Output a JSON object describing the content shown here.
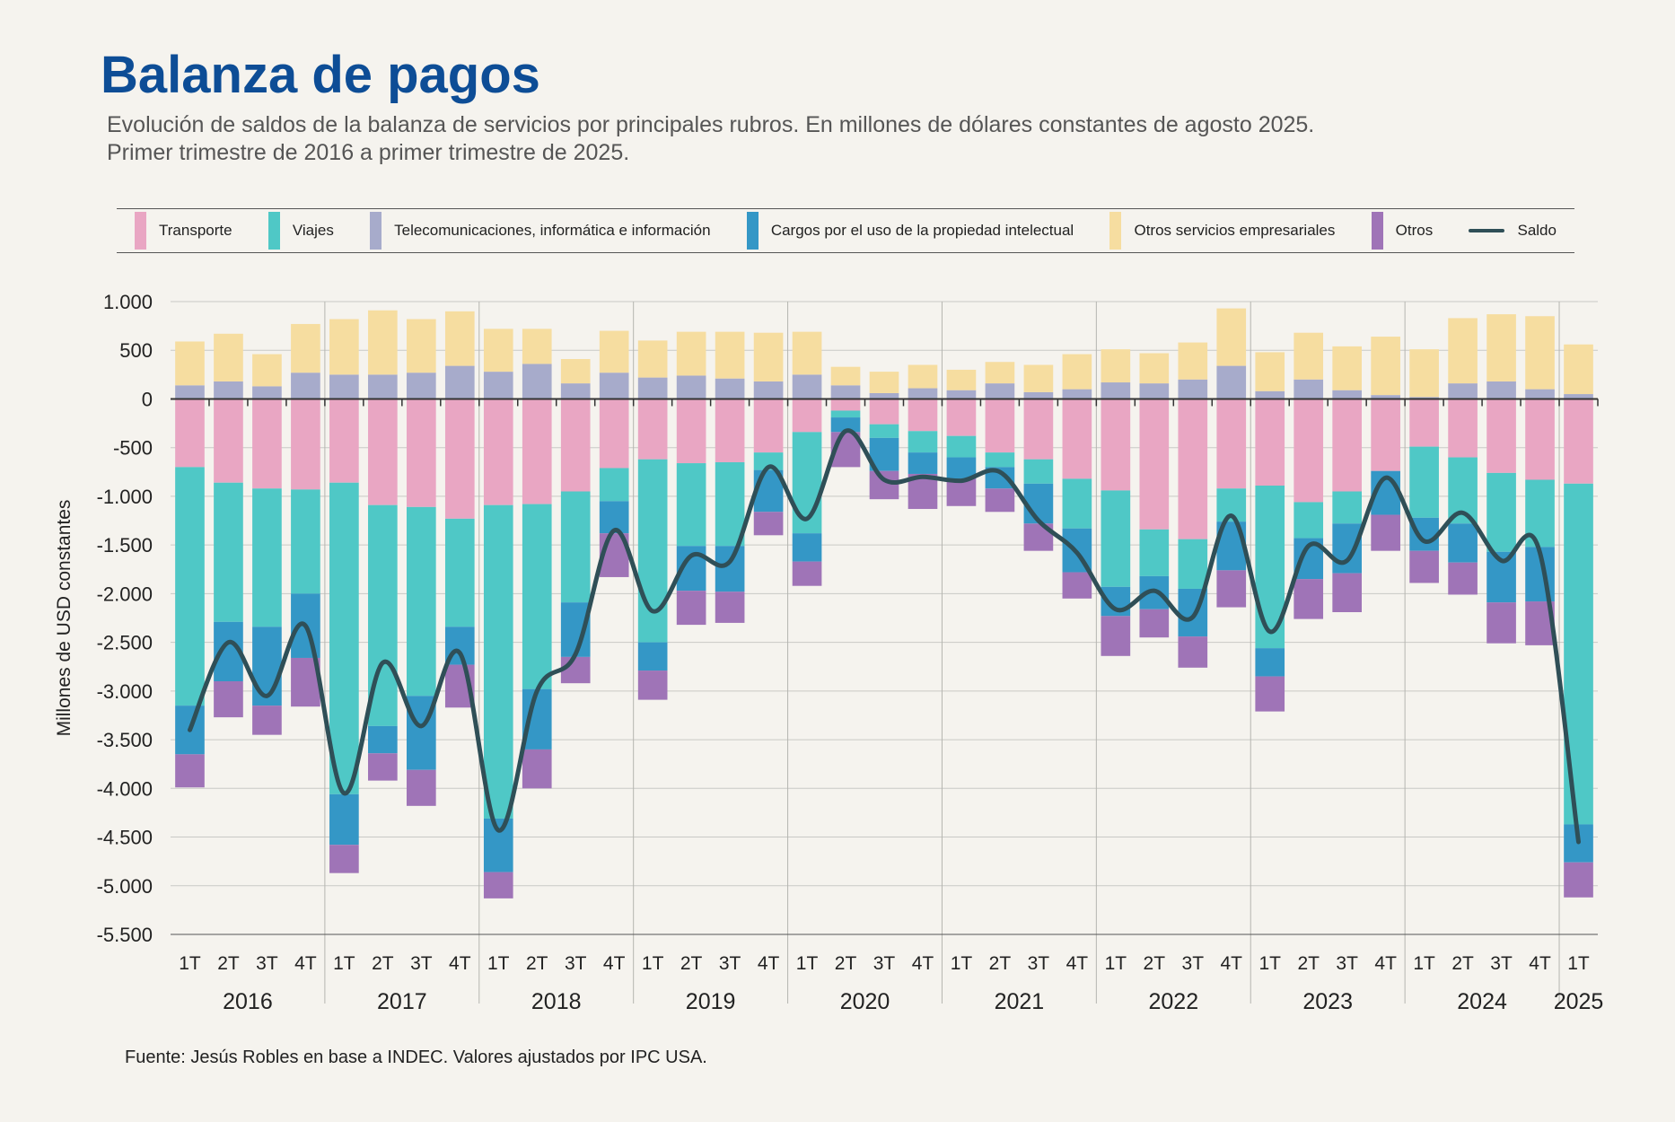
{
  "header": {
    "title": "Balanza de pagos",
    "subtitle_line1": "Evolución de saldos de la balanza de servicios por principales rubros. En millones de dólares constantes de agosto 2025.",
    "subtitle_line2": "Primer trimestre de 2016 a primer trimestre de 2025."
  },
  "source": "Fuente: Jesús Robles en base a INDEC. Valores ajustados por IPC USA.",
  "chart_data": {
    "type": "bar",
    "stacked": true,
    "ylabel": "Millones de USD constantes",
    "ylim": [
      -5500,
      1000
    ],
    "yticks": [
      1000,
      500,
      0,
      -500,
      -1000,
      -1500,
      -2000,
      -2500,
      -3000,
      -3500,
      -4000,
      -4500,
      -5000,
      -5500
    ],
    "ytick_labels": [
      "1.000",
      "500",
      "0",
      "-500",
      "-1.000",
      "-1.500",
      "-2.000",
      "-2.500",
      "-3.000",
      "-3.500",
      "-4.000",
      "-4.500",
      "-5.000",
      "-5.500"
    ],
    "grid": true,
    "legend_position": "top",
    "quarter_labels": [
      "1T",
      "2T",
      "3T",
      "4T",
      "1T",
      "2T",
      "3T",
      "4T",
      "1T",
      "2T",
      "3T",
      "4T",
      "1T",
      "2T",
      "3T",
      "4T",
      "1T",
      "2T",
      "3T",
      "4T",
      "1T",
      "2T",
      "3T",
      "4T",
      "1T",
      "2T",
      "3T",
      "4T",
      "1T",
      "2T",
      "3T",
      "4T",
      "1T",
      "2T",
      "3T",
      "4T",
      "1T"
    ],
    "years": [
      {
        "label": "2016",
        "count": 4
      },
      {
        "label": "2017",
        "count": 4
      },
      {
        "label": "2018",
        "count": 4
      },
      {
        "label": "2019",
        "count": 4
      },
      {
        "label": "2020",
        "count": 4
      },
      {
        "label": "2021",
        "count": 4
      },
      {
        "label": "2022",
        "count": 4
      },
      {
        "label": "2023",
        "count": 4
      },
      {
        "label": "2024",
        "count": 4
      },
      {
        "label": "2025",
        "count": 1
      }
    ],
    "series": [
      {
        "name": "Transporte",
        "color": "#e9a6c3",
        "values": [
          -700,
          -860,
          -920,
          -930,
          -860,
          -1090,
          -1110,
          -1230,
          -1090,
          -1080,
          -950,
          -710,
          -620,
          -660,
          -650,
          -550,
          -340,
          -120,
          -260,
          -330,
          -380,
          -550,
          -620,
          -820,
          -940,
          -1340,
          -1440,
          -920,
          -890,
          -1060,
          -950,
          -740,
          -490,
          -600,
          -760,
          -830,
          -870
        ]
      },
      {
        "name": "Viajes",
        "color": "#4fc8c6",
        "values": [
          -2450,
          -1430,
          -1420,
          -1070,
          -3200,
          -2270,
          -1940,
          -1110,
          -3220,
          -1900,
          -1140,
          -340,
          -1880,
          -850,
          -860,
          -180,
          -1040,
          -70,
          -140,
          -220,
          -220,
          -150,
          -250,
          -510,
          -990,
          -480,
          -510,
          -340,
          -1670,
          -370,
          -330,
          0,
          -730,
          -680,
          -810,
          -690,
          -3500
        ]
      },
      {
        "name": "Telecomunicaciones, informática e información",
        "color": "#a7abcb",
        "values": [
          140,
          180,
          130,
          270,
          250,
          250,
          270,
          340,
          280,
          360,
          160,
          270,
          220,
          240,
          210,
          180,
          250,
          140,
          60,
          110,
          90,
          160,
          70,
          100,
          170,
          160,
          200,
          340,
          80,
          200,
          90,
          40,
          20,
          160,
          180,
          100,
          50
        ]
      },
      {
        "name": "Cargos por el uso de la propiedad intelectual",
        "color": "#3497c6",
        "values": [
          -500,
          -610,
          -810,
          -660,
          -520,
          -280,
          -760,
          -390,
          -550,
          -620,
          -560,
          -330,
          -290,
          -460,
          -470,
          -430,
          -290,
          -150,
          -340,
          -220,
          -220,
          -220,
          -410,
          -450,
          -300,
          -340,
          -490,
          -500,
          -290,
          -420,
          -510,
          -450,
          -340,
          -400,
          -520,
          -560,
          -390
        ]
      },
      {
        "name": "Otros servicios empresariales",
        "color": "#f6dda0",
        "values": [
          450,
          490,
          330,
          500,
          570,
          660,
          550,
          560,
          440,
          360,
          250,
          430,
          380,
          450,
          480,
          500,
          440,
          190,
          220,
          240,
          210,
          220,
          280,
          360,
          340,
          310,
          380,
          590,
          400,
          480,
          450,
          600,
          490,
          670,
          690,
          750,
          510
        ]
      },
      {
        "name": "Otros",
        "color": "#9f74b7",
        "values": [
          -340,
          -370,
          -300,
          -500,
          -290,
          -280,
          -370,
          -440,
          -270,
          -400,
          -270,
          -450,
          -300,
          -350,
          -320,
          -240,
          -250,
          -360,
          -290,
          -360,
          -280,
          -240,
          -280,
          -270,
          -410,
          -290,
          -320,
          -380,
          -360,
          -410,
          -400,
          -370,
          -330,
          -330,
          -420,
          -450,
          -360
        ]
      },
      {
        "name": "Saldo",
        "type": "line",
        "color": "#2f4f57",
        "values": [
          -3400,
          -2500,
          -3050,
          -2330,
          -4050,
          -2710,
          -3360,
          -2610,
          -4430,
          -3000,
          -2620,
          -1350,
          -2180,
          -1610,
          -1670,
          -700,
          -1230,
          -330,
          -830,
          -800,
          -840,
          -750,
          -1250,
          -1580,
          -2160,
          -1970,
          -2240,
          -1200,
          -2390,
          -1510,
          -1660,
          -810,
          -1460,
          -1170,
          -1660,
          -1580,
          -4550
        ]
      }
    ]
  }
}
